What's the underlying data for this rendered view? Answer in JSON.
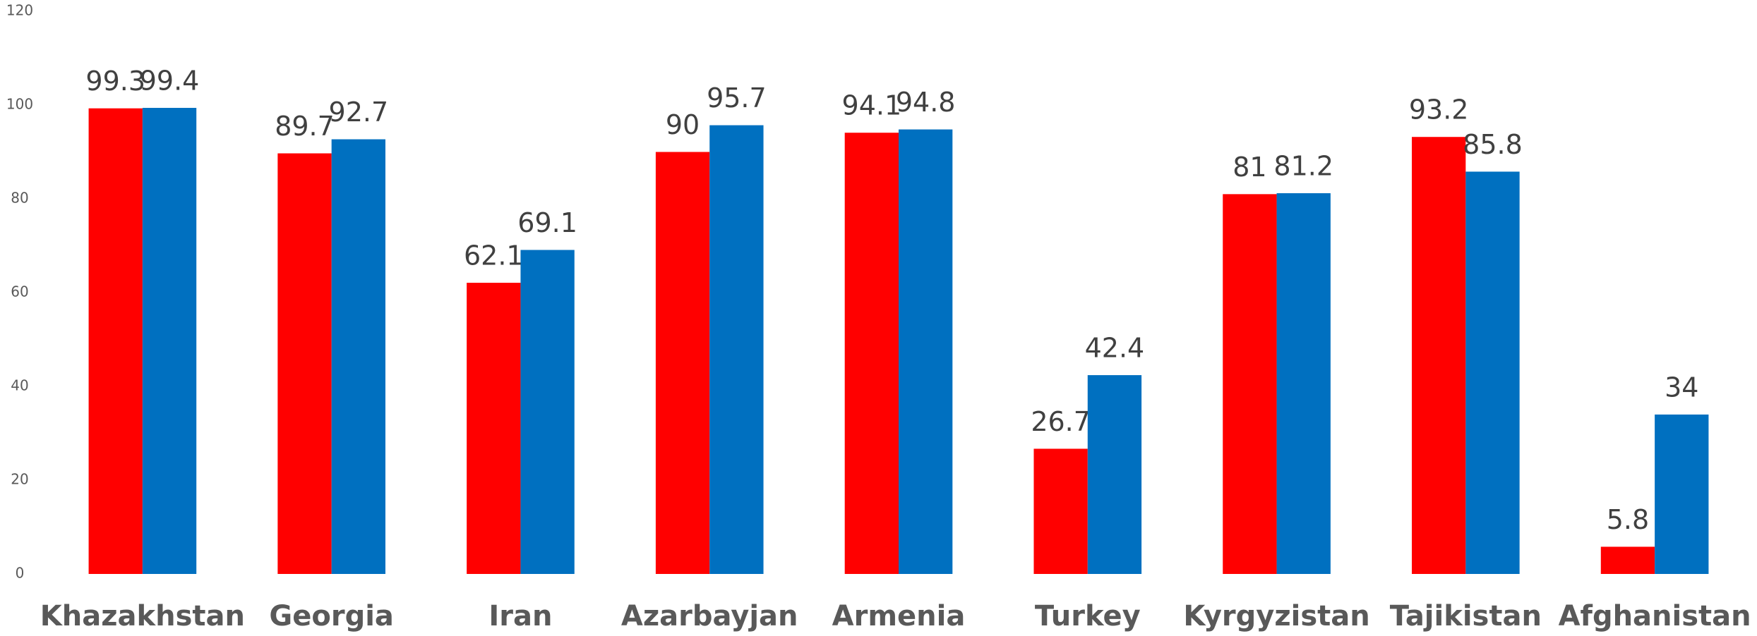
{
  "chart_data": {
    "type": "bar",
    "categories": [
      "Khazakhstan",
      "Georgia",
      "Iran",
      "Azarbayjan",
      "Armenia",
      "Turkey",
      "Kyrgyzistan",
      "Tajikistan",
      "Afghanistan"
    ],
    "series": [
      {
        "color": "#ff0000",
        "values": [
          99.3,
          89.7,
          62.1,
          90,
          94.1,
          26.7,
          81,
          93.2,
          5.8
        ]
      },
      {
        "color": "#0070c0",
        "values": [
          99.4,
          92.7,
          69.1,
          95.7,
          94.8,
          42.4,
          81.2,
          85.8,
          34
        ]
      }
    ],
    "ylim": [
      0,
      120
    ],
    "yticks": [
      0,
      20,
      40,
      60,
      80,
      100,
      120
    ],
    "grid": false
  }
}
